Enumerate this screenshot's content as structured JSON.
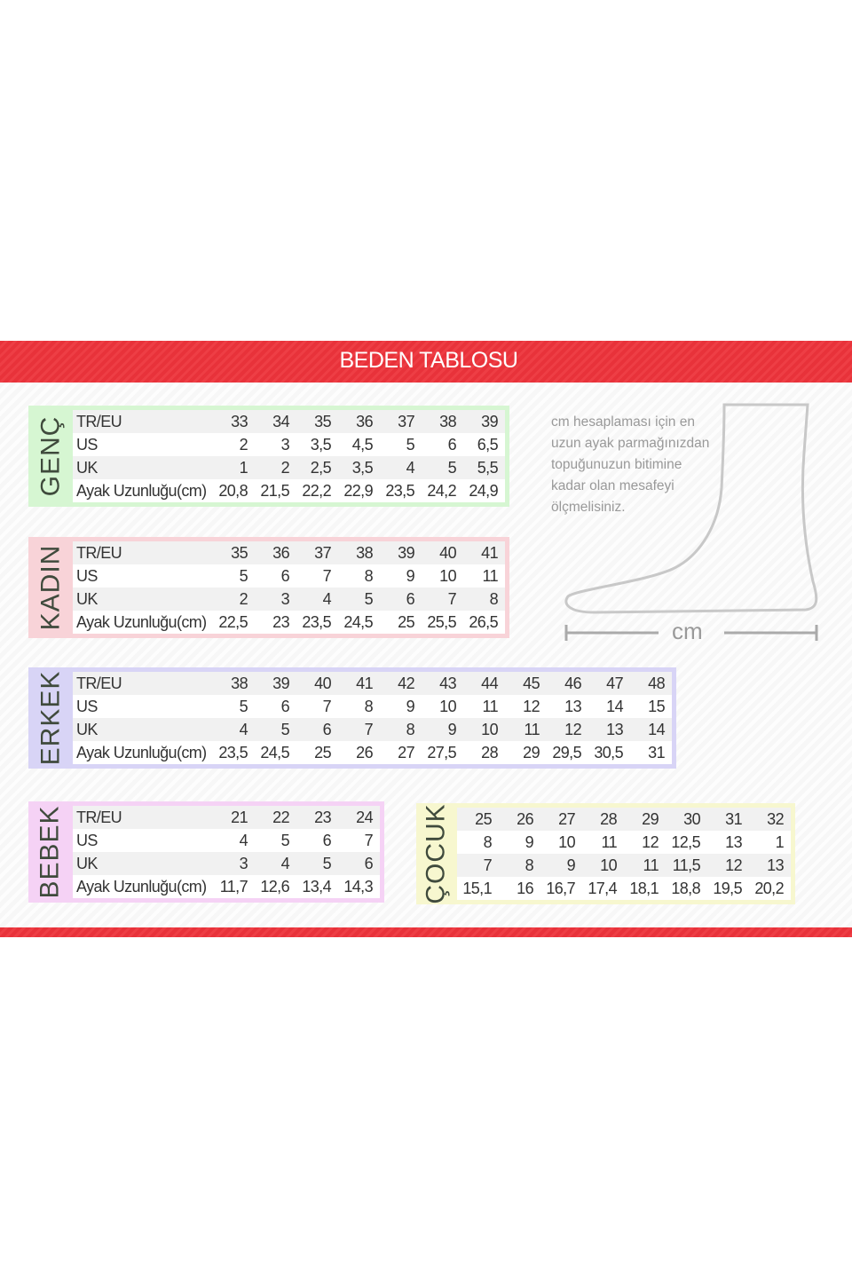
{
  "title": "BEDEN TABLOSU",
  "note": [
    "cm hesaplaması için en",
    "uzun ayak parmağınızdan",
    "topuğunuzun bitimine",
    "kadar olan mesafeyi",
    "ölçmelisiniz."
  ],
  "diagram": {
    "unit_label": "cm",
    "icon": "foot-outline"
  },
  "colors": {
    "band": "#e8323a",
    "genc": "#d6f6d2",
    "kadin": "#f8d3d8",
    "erkek": "#d8d4f6",
    "bebek": "#f5d2f5",
    "cocuk": "#f7f7cf"
  },
  "tables": [
    {
      "id": "genc",
      "label": "GENÇ",
      "rows": [
        {
          "label": "TR/EU",
          "values": [
            "33",
            "34",
            "35",
            "36",
            "37",
            "38",
            "39"
          ]
        },
        {
          "label": "US",
          "values": [
            "2",
            "3",
            "3,5",
            "4,5",
            "5",
            "6",
            "6,5"
          ]
        },
        {
          "label": "UK",
          "values": [
            "1",
            "2",
            "2,5",
            "3,5",
            "4",
            "5",
            "5,5"
          ]
        },
        {
          "label": "Ayak Uzunluğu(cm)",
          "values": [
            "20,8",
            "21,5",
            "22,2",
            "22,9",
            "23,5",
            "24,2",
            "24,9"
          ]
        }
      ]
    },
    {
      "id": "kadin",
      "label": "KADIN",
      "rows": [
        {
          "label": "TR/EU",
          "values": [
            "35",
            "36",
            "37",
            "38",
            "39",
            "40",
            "41"
          ]
        },
        {
          "label": "US",
          "values": [
            "5",
            "6",
            "7",
            "8",
            "9",
            "10",
            "11"
          ]
        },
        {
          "label": "UK",
          "values": [
            "2",
            "3",
            "4",
            "5",
            "6",
            "7",
            "8"
          ]
        },
        {
          "label": "Ayak Uzunluğu(cm)",
          "values": [
            "22,5",
            "23",
            "23,5",
            "24,5",
            "25",
            "25,5",
            "26,5"
          ]
        }
      ]
    },
    {
      "id": "erkek",
      "label": "ERKEK",
      "rows": [
        {
          "label": "TR/EU",
          "values": [
            "38",
            "39",
            "40",
            "41",
            "42",
            "43",
            "44",
            "45",
            "46",
            "47",
            "48"
          ]
        },
        {
          "label": "US",
          "values": [
            "5",
            "6",
            "7",
            "8",
            "9",
            "10",
            "11",
            "12",
            "13",
            "14",
            "15"
          ]
        },
        {
          "label": "UK",
          "values": [
            "4",
            "5",
            "6",
            "7",
            "8",
            "9",
            "10",
            "11",
            "12",
            "13",
            "14"
          ]
        },
        {
          "label": "Ayak Uzunluğu(cm)",
          "values": [
            "23,5",
            "24,5",
            "25",
            "26",
            "27",
            "27,5",
            "28",
            "29",
            "29,5",
            "30,5",
            "31"
          ]
        }
      ]
    },
    {
      "id": "bebek",
      "label": "BEBEK",
      "rows": [
        {
          "label": "TR/EU",
          "values": [
            "21",
            "22",
            "23",
            "24"
          ]
        },
        {
          "label": "US",
          "values": [
            "4",
            "5",
            "6",
            "7"
          ]
        },
        {
          "label": "UK",
          "values": [
            "3",
            "4",
            "5",
            "6"
          ]
        },
        {
          "label": "Ayak Uzunluğu(cm)",
          "values": [
            "11,7",
            "12,6",
            "13,4",
            "14,3"
          ]
        }
      ]
    },
    {
      "id": "cocuk",
      "label": "ÇOCUK",
      "rows": [
        {
          "values": [
            "25",
            "26",
            "27",
            "28",
            "29",
            "30",
            "31",
            "32"
          ]
        },
        {
          "values": [
            "8",
            "9",
            "10",
            "11",
            "12",
            "12,5",
            "13",
            "1"
          ]
        },
        {
          "values": [
            "7",
            "8",
            "9",
            "10",
            "11",
            "11,5",
            "12",
            "13"
          ]
        },
        {
          "values": [
            "15,1",
            "16",
            "16,7",
            "17,4",
            "18,1",
            "18,8",
            "19,5",
            "20,2"
          ]
        }
      ]
    }
  ]
}
